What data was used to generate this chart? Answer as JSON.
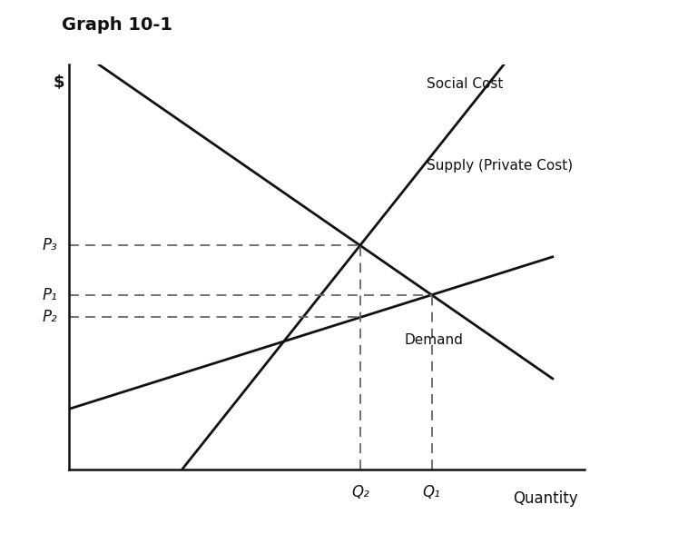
{
  "title": "Graph 10-1",
  "xlabel": "Quantity",
  "ylabel": "$",
  "background_color": "#ffffff",
  "line_color": "#111111",
  "dash_color": "#666666",
  "x_range": [
    0,
    8
  ],
  "y_range": [
    0,
    10
  ],
  "supply_slope": 0.5,
  "supply_intercept": 1.5,
  "social_slope": 2.0,
  "social_intercept": -3.5,
  "demand_slope": -1.1,
  "demand_intercept": 10.5,
  "labels": {
    "social_cost": "Social Cost",
    "supply": "Supply (Private Cost)",
    "demand": "Demand",
    "P1": "P₁",
    "P2": "P₂",
    "P3": "P₃",
    "Q1": "Q₁",
    "Q2": "Q₂"
  }
}
